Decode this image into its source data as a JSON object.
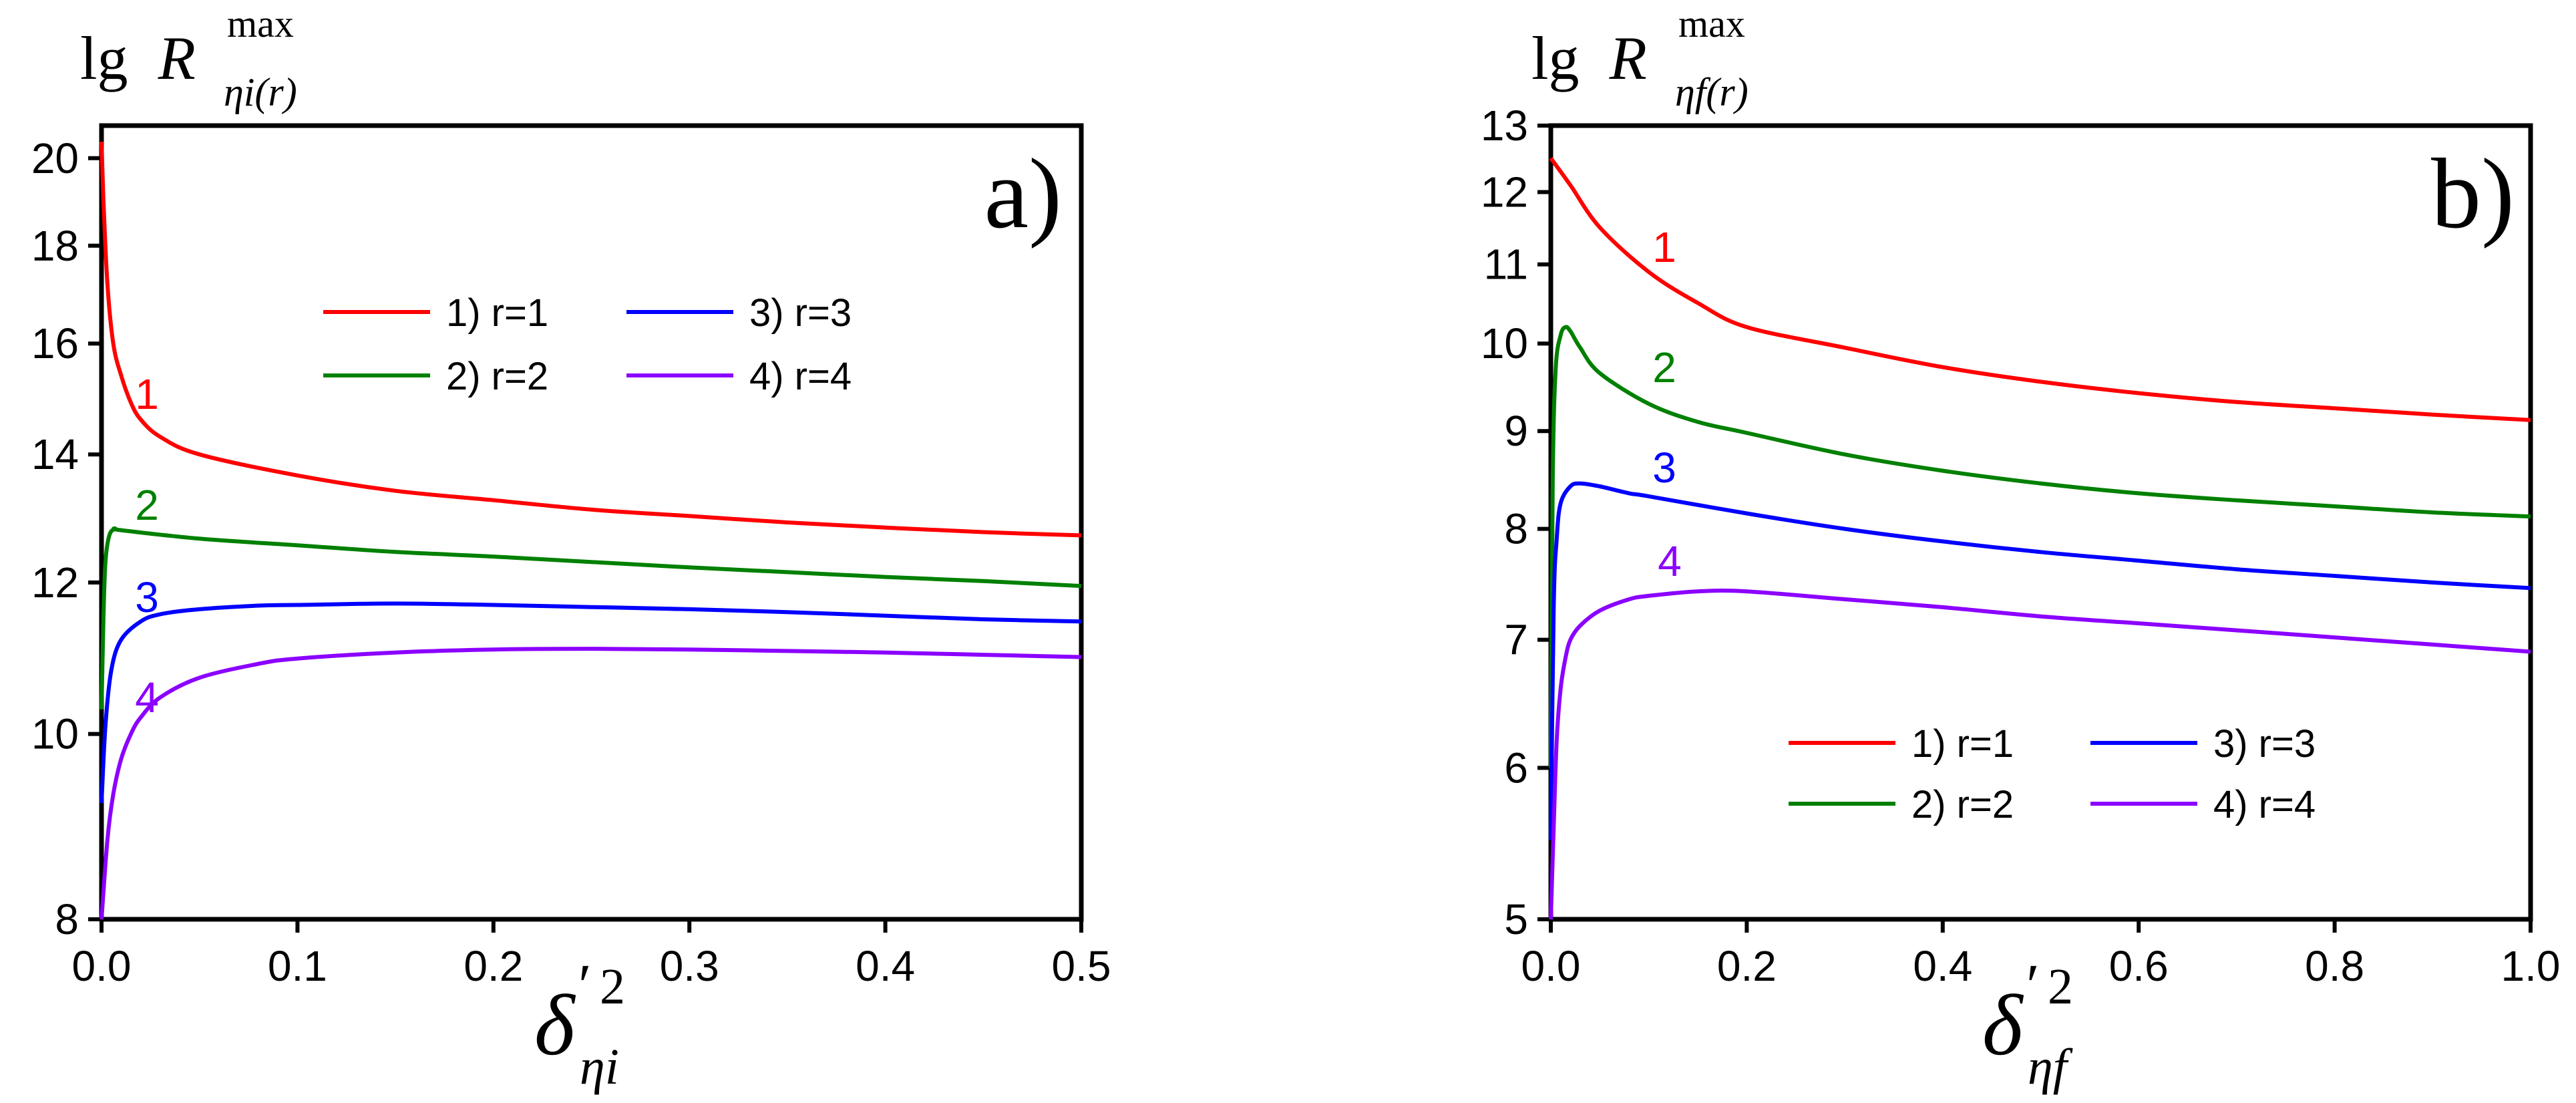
{
  "colors": {
    "r1": "#ff0000",
    "r2": "#008000",
    "r3": "#0000ff",
    "r4": "#8b00ff",
    "axis": "#000000"
  },
  "chart_data": [
    {
      "type": "line",
      "panel_label": "a)",
      "ylabel": {
        "prefix": "lg",
        "symbol": "R",
        "superscript": "max",
        "subscript": "ηi(r)"
      },
      "xlabel": {
        "symbol": "δ",
        "prime": "′",
        "superscript": "2",
        "subscript": "ηi"
      },
      "yscale": "log",
      "xlim": [
        0,
        0.5
      ],
      "ylim": [
        8,
        20.8
      ],
      "xticks": [
        0.0,
        0.1,
        0.2,
        0.3,
        0.4,
        0.5
      ],
      "xtick_labels": [
        "0.0",
        "0.1",
        "0.2",
        "0.3",
        "0.4",
        "0.5"
      ],
      "yticks": [
        8,
        10,
        12,
        14,
        16,
        18,
        20
      ],
      "ytick_labels": [
        "8",
        "10",
        "12",
        "14",
        "16",
        "18",
        "20"
      ],
      "legend": {
        "placement": "top-center",
        "entries": [
          "1) r=1",
          "2) r=2",
          "3) r=3",
          "4) r=4"
        ]
      },
      "curve_labels": [
        "1",
        "2",
        "3",
        "4"
      ],
      "series": [
        {
          "name": "1) r=1",
          "color_key": "r1",
          "x": [
            0.0,
            0.001,
            0.003,
            0.006,
            0.01,
            0.015,
            0.02,
            0.03,
            0.05,
            0.1,
            0.15,
            0.2,
            0.25,
            0.3,
            0.35,
            0.4,
            0.45,
            0.5
          ],
          "y": [
            20.4,
            19.0,
            17.2,
            16.0,
            15.4,
            14.9,
            14.6,
            14.3,
            14.0,
            13.65,
            13.4,
            13.25,
            13.1,
            13.0,
            12.9,
            12.82,
            12.75,
            12.7
          ]
        },
        {
          "name": "2) r=2",
          "color_key": "r2",
          "x": [
            0.0,
            0.001,
            0.002,
            0.004,
            0.007,
            0.01,
            0.05,
            0.1,
            0.15,
            0.2,
            0.25,
            0.3,
            0.35,
            0.4,
            0.45,
            0.5
          ],
          "y": [
            10.3,
            11.5,
            12.3,
            12.7,
            12.8,
            12.78,
            12.65,
            12.55,
            12.45,
            12.38,
            12.3,
            12.22,
            12.15,
            12.08,
            12.02,
            11.95
          ]
        },
        {
          "name": "3) r=3",
          "color_key": "r3",
          "x": [
            0.0,
            0.002,
            0.005,
            0.01,
            0.02,
            0.03,
            0.05,
            0.08,
            0.1,
            0.15,
            0.2,
            0.25,
            0.3,
            0.35,
            0.4,
            0.45,
            0.5
          ],
          "y": [
            9.2,
            10.1,
            10.8,
            11.2,
            11.45,
            11.55,
            11.62,
            11.67,
            11.68,
            11.7,
            11.68,
            11.65,
            11.62,
            11.58,
            11.53,
            11.48,
            11.45
          ]
        },
        {
          "name": "4) r=4",
          "color_key": "r4",
          "x": [
            0.0,
            0.003,
            0.006,
            0.01,
            0.015,
            0.02,
            0.03,
            0.05,
            0.08,
            0.1,
            0.15,
            0.2,
            0.25,
            0.3,
            0.35,
            0.4,
            0.45,
            0.5
          ],
          "y": [
            8.0,
            8.8,
            9.3,
            9.7,
            10.0,
            10.2,
            10.45,
            10.7,
            10.88,
            10.95,
            11.03,
            11.07,
            11.08,
            11.07,
            11.05,
            11.03,
            11.0,
            10.97
          ]
        }
      ]
    },
    {
      "type": "line",
      "panel_label": "b)",
      "ylabel": {
        "prefix": "lg",
        "symbol": "R",
        "superscript": "max",
        "subscript": "ηf(r)"
      },
      "xlabel": {
        "symbol": "δ",
        "prime": "′",
        "superscript": "2",
        "subscript": "ηf"
      },
      "yscale": "log",
      "xlim": [
        0,
        1.0
      ],
      "ylim": [
        5,
        13
      ],
      "xticks": [
        0.0,
        0.2,
        0.4,
        0.6,
        0.8,
        1.0
      ],
      "xtick_labels": [
        "0.0",
        "0.2",
        "0.4",
        "0.6",
        "0.8",
        "1.0"
      ],
      "yticks": [
        5,
        6,
        7,
        8,
        9,
        10,
        11,
        12,
        13
      ],
      "ytick_labels": [
        "5",
        "6",
        "7",
        "8",
        "9",
        "10",
        "11",
        "12",
        "13"
      ],
      "legend": {
        "placement": "bottom-right",
        "entries": [
          "1) r=1",
          "2) r=2",
          "3) r=3",
          "4) r=4"
        ]
      },
      "curve_labels": [
        "1",
        "2",
        "3",
        "4"
      ],
      "series": [
        {
          "name": "1) r=1",
          "color_key": "r1",
          "x": [
            0.0,
            0.02,
            0.05,
            0.1,
            0.15,
            0.2,
            0.3,
            0.4,
            0.5,
            0.6,
            0.7,
            0.8,
            0.9,
            1.0
          ],
          "y": [
            12.5,
            12.1,
            11.5,
            10.9,
            10.5,
            10.2,
            9.95,
            9.72,
            9.55,
            9.42,
            9.32,
            9.25,
            9.18,
            9.12
          ]
        },
        {
          "name": "2) r=2",
          "color_key": "r2",
          "x": [
            0.0,
            0.002,
            0.005,
            0.01,
            0.015,
            0.02,
            0.03,
            0.05,
            0.1,
            0.15,
            0.2,
            0.3,
            0.4,
            0.5,
            0.6,
            0.7,
            0.8,
            0.9,
            1.0
          ],
          "y": [
            6.0,
            8.5,
            9.7,
            10.1,
            10.2,
            10.15,
            9.95,
            9.65,
            9.3,
            9.1,
            8.98,
            8.75,
            8.58,
            8.45,
            8.35,
            8.28,
            8.22,
            8.16,
            8.12
          ]
        },
        {
          "name": "3) r=3",
          "color_key": "r3",
          "x": [
            0.0,
            0.003,
            0.006,
            0.01,
            0.02,
            0.03,
            0.05,
            0.08,
            0.1,
            0.2,
            0.3,
            0.4,
            0.5,
            0.6,
            0.7,
            0.8,
            0.9,
            1.0
          ],
          "y": [
            5.5,
            7.3,
            7.9,
            8.25,
            8.42,
            8.45,
            8.42,
            8.35,
            8.32,
            8.15,
            8.0,
            7.88,
            7.78,
            7.7,
            7.62,
            7.56,
            7.5,
            7.45
          ]
        },
        {
          "name": "4) r=4",
          "color_key": "r4",
          "x": [
            0.0,
            0.003,
            0.006,
            0.01,
            0.015,
            0.02,
            0.03,
            0.05,
            0.08,
            0.1,
            0.15,
            0.2,
            0.3,
            0.4,
            0.5,
            0.6,
            0.7,
            0.8,
            0.9,
            1.0
          ],
          "y": [
            5.0,
            5.6,
            6.2,
            6.6,
            6.85,
            7.0,
            7.12,
            7.25,
            7.35,
            7.38,
            7.42,
            7.42,
            7.35,
            7.28,
            7.2,
            7.14,
            7.08,
            7.02,
            6.96,
            6.9
          ]
        }
      ]
    }
  ]
}
